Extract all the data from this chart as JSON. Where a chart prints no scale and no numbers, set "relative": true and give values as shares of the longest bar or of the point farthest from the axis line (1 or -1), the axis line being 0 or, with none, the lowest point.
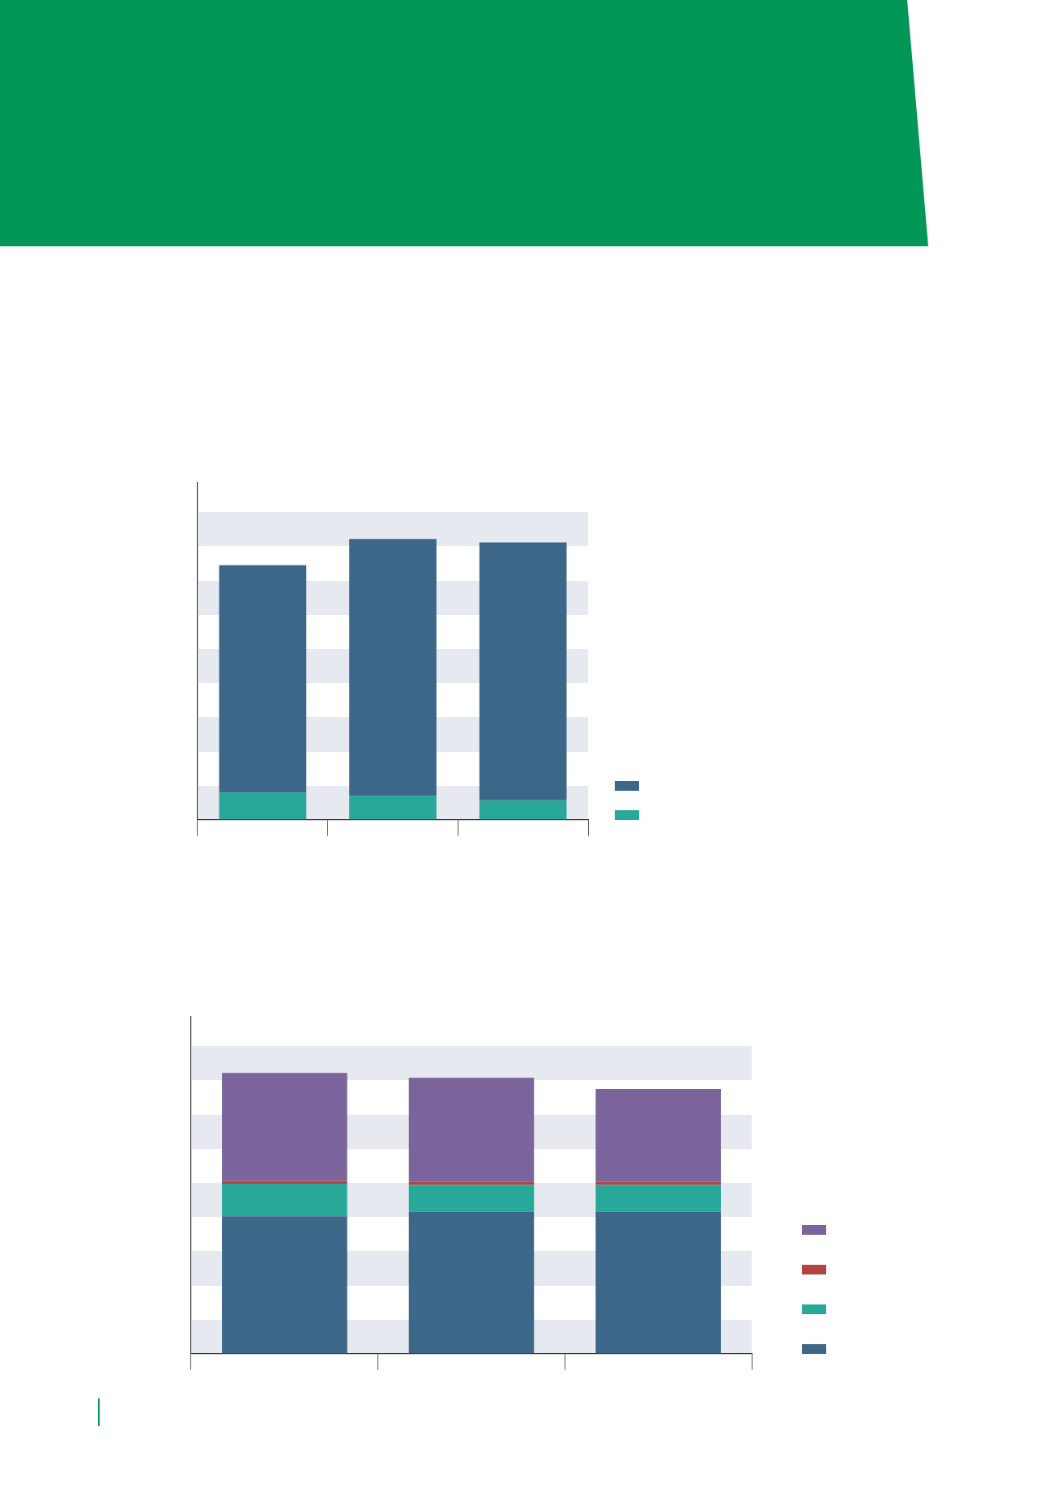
{
  "chart_data": [
    {
      "type": "bar",
      "relative": true,
      "stacked": true,
      "categories": [
        null,
        null,
        null
      ],
      "series": [
        {
          "color": "#28a899",
          "values": [
            0.096,
            0.085,
            0.069
          ]
        },
        {
          "color": "#3c6789",
          "values": [
            0.811,
            0.915,
            0.919
          ]
        }
      ]
    },
    {
      "type": "bar",
      "relative": true,
      "stacked": true,
      "categories": [
        null,
        null,
        null
      ],
      "series": [
        {
          "color": "#3c6789",
          "values": [
            0.489,
            0.505,
            0.505
          ]
        },
        {
          "color": "#28a899",
          "values": [
            0.116,
            0.096,
            0.096
          ]
        },
        {
          "color": "#b04542",
          "values": [
            0.01,
            0.011,
            0.011
          ]
        },
        {
          "color": "#7a649b",
          "values": [
            0.385,
            0.371,
            0.331
          ]
        }
      ]
    }
  ]
}
